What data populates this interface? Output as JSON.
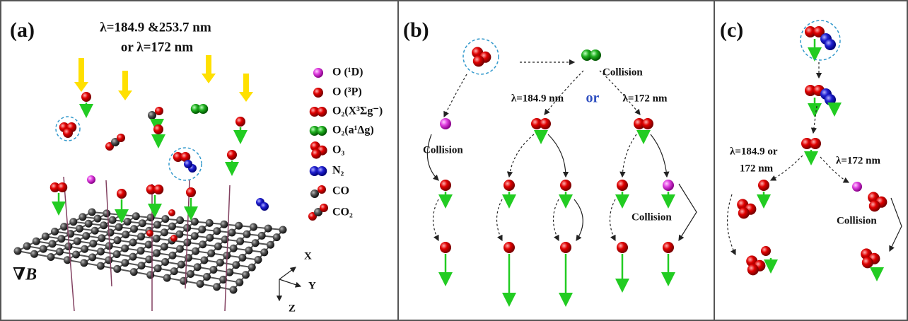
{
  "panel_a": {
    "label": "(a)",
    "wavelength_line1": "λ=184.9 &253.7 nm",
    "wavelength_line2": "or λ=172 nm",
    "legend": [
      "O (¹D)",
      "O (³P)",
      "O₂(X³Σg⁻)",
      "O₂(a¹Δg)",
      "O₃",
      "N₂",
      "CO",
      "CO₂"
    ],
    "axes": [
      "X",
      "Y",
      "Z"
    ],
    "gradient_label": "∇B⃗"
  },
  "panel_b": {
    "label": "(b)",
    "collision_top": "Collision",
    "wavelength_left": "λ=184.9 nm",
    "or": "or",
    "wavelength_right": "λ=172 nm",
    "collision_left": "Collision",
    "collision_right": "Collision"
  },
  "panel_c": {
    "label": "(c)",
    "wavelength_left_line1": "λ=184.9 or",
    "wavelength_left_line2": "172 nm",
    "wavelength_right": "λ=172 nm",
    "collision": "Collision"
  }
}
